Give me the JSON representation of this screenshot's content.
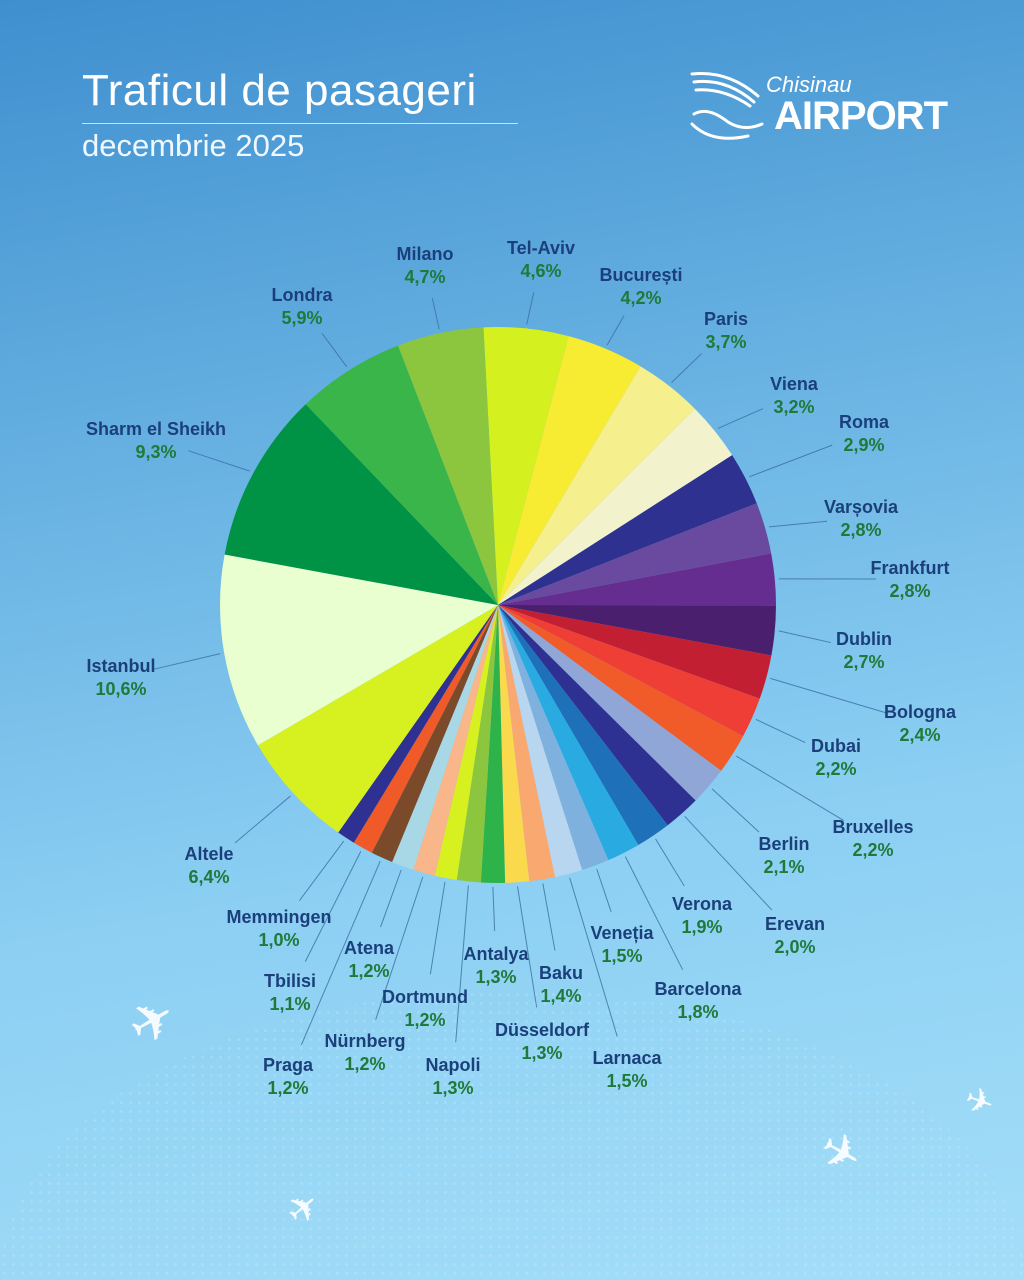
{
  "header": {
    "title": "Traficul de pasageri",
    "subtitle": "decembrie 2025"
  },
  "logo": {
    "line1": "Chisinau",
    "line2": "AIRPORT"
  },
  "chart_data": {
    "type": "pie",
    "title": "Traficul de pasageri",
    "subtitle": "decembrie 2025",
    "slices": [
      {
        "label": "Tel-Aviv",
        "value": 4.6,
        "display": "4,6%",
        "color": "#d4f01e"
      },
      {
        "label": "București",
        "value": 4.2,
        "display": "4,2%",
        "color": "#f7ec32"
      },
      {
        "label": "Paris",
        "value": 3.7,
        "display": "3,7%",
        "color": "#f6ef8e"
      },
      {
        "label": "Viena",
        "value": 3.2,
        "display": "3,2%",
        "color": "#f2f2cc"
      },
      {
        "label": "Roma",
        "value": 2.9,
        "display": "2,9%",
        "color": "#2e3190"
      },
      {
        "label": "Varșovia",
        "value": 2.8,
        "display": "2,8%",
        "color": "#6a4a9e"
      },
      {
        "label": "Frankfurt",
        "value": 2.8,
        "display": "2,8%",
        "color": "#662d91"
      },
      {
        "label": "Dublin",
        "value": 2.7,
        "display": "2,7%",
        "color": "#4a1f6e"
      },
      {
        "label": "Bologna",
        "value": 2.4,
        "display": "2,4%",
        "color": "#c21f32"
      },
      {
        "label": "Dubai",
        "value": 2.2,
        "display": "2,2%",
        "color": "#ee3e36"
      },
      {
        "label": "Bruxelles",
        "value": 2.2,
        "display": "2,2%",
        "color": "#f15a29"
      },
      {
        "label": "Berlin",
        "value": 2.1,
        "display": "2,1%",
        "color": "#8fa6d6"
      },
      {
        "label": "Erevan",
        "value": 2.0,
        "display": "2,0%",
        "color": "#2e3192"
      },
      {
        "label": "Verona",
        "value": 1.9,
        "display": "1,9%",
        "color": "#1e70b8"
      },
      {
        "label": "Barcelona",
        "value": 1.8,
        "display": "1,8%",
        "color": "#29abe2"
      },
      {
        "label": "Veneția",
        "value": 1.5,
        "display": "1,5%",
        "color": "#7fb1df"
      },
      {
        "label": "Larnaca",
        "value": 1.5,
        "display": "1,5%",
        "color": "#b9d6f0"
      },
      {
        "label": "Baku",
        "value": 1.4,
        "display": "1,4%",
        "color": "#f9a870"
      },
      {
        "label": "Düsseldorf",
        "value": 1.3,
        "display": "1,3%",
        "color": "#fbd94c"
      },
      {
        "label": "Antalya",
        "value": 1.3,
        "display": "1,3%",
        "color": "#2db34a"
      },
      {
        "label": "Napoli",
        "value": 1.3,
        "display": "1,3%",
        "color": "#8cc63f"
      },
      {
        "label": "Dortmund",
        "value": 1.2,
        "display": "1,2%",
        "color": "#d7f020"
      },
      {
        "label": "Nürnberg",
        "value": 1.2,
        "display": "1,2%",
        "color": "#f9b68a"
      },
      {
        "label": "Atena",
        "value": 1.2,
        "display": "1,2%",
        "color": "#a8d8e6"
      },
      {
        "label": "Praga",
        "value": 1.2,
        "display": "1,2%",
        "color": "#7a4a2a"
      },
      {
        "label": "Tbilisi",
        "value": 1.1,
        "display": "1,1%",
        "color": "#f05a28"
      },
      {
        "label": "Memmingen",
        "value": 1.0,
        "display": "1,0%",
        "color": "#2e3192"
      },
      {
        "label": "Altele",
        "value": 6.4,
        "display": "6,4%",
        "color": "#d7f020"
      },
      {
        "label": "Istanbul",
        "value": 10.6,
        "display": "10,6%",
        "color": "#eaffcf"
      },
      {
        "label": "Sharm el Sheikh",
        "value": 9.3,
        "display": "9,3%",
        "color": "#009245"
      },
      {
        "label": "Londra",
        "value": 5.9,
        "display": "5,9%",
        "color": "#39b54a"
      },
      {
        "label": "Milano",
        "value": 4.7,
        "display": "4,7%",
        "color": "#8cc63f"
      }
    ]
  }
}
